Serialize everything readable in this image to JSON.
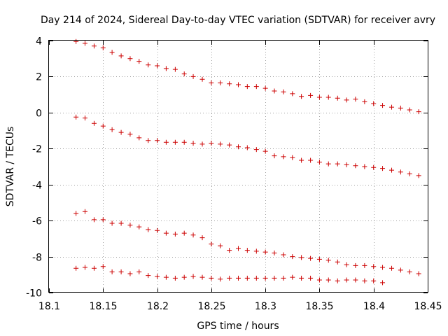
{
  "chart_data": {
    "type": "scatter",
    "title": "Day 214 of 2024, Sidereal Day-to-day VTEC variation (SDTVAR) for receiver avry",
    "xlabel": "GPS time / hours",
    "ylabel": "SDTVAR / TECUs",
    "xlim": [
      18.1,
      18.45
    ],
    "ylim": [
      -10,
      4
    ],
    "grid": true,
    "marker": "+",
    "marker_color": "#cc0000",
    "xticks": [
      18.1,
      18.15,
      18.2,
      18.25,
      18.3,
      18.35,
      18.4,
      18.45
    ],
    "xtick_labels": [
      "18.1",
      "18.15",
      "18.2",
      "18.25",
      "18.3",
      "18.35",
      "18.4",
      "18.45"
    ],
    "yticks": [
      -10,
      -8,
      -6,
      -4,
      -2,
      0,
      2,
      4
    ],
    "ytick_labels": [
      "-10",
      "-8",
      "-6",
      "-4",
      "-2",
      "0",
      "2",
      "4"
    ],
    "series": [
      {
        "name": "series-1",
        "x": [
          18.125,
          18.1333,
          18.1417,
          18.15,
          18.1583,
          18.1667,
          18.175,
          18.1833,
          18.1917,
          18.2,
          18.2083,
          18.2167,
          18.225,
          18.2333,
          18.2417,
          18.25,
          18.2583,
          18.2667,
          18.275,
          18.2833,
          18.2917,
          18.3,
          18.3083,
          18.3167,
          18.325,
          18.3333,
          18.3417,
          18.35,
          18.3583,
          18.3667,
          18.375,
          18.3833,
          18.3917,
          18.4,
          18.4083,
          18.4167,
          18.425,
          18.4333,
          18.4417
        ],
        "y": [
          3.95,
          3.85,
          3.7,
          3.6,
          3.35,
          3.15,
          3.0,
          2.85,
          2.65,
          2.6,
          2.45,
          2.4,
          2.15,
          2.0,
          1.85,
          1.65,
          1.65,
          1.6,
          1.55,
          1.45,
          1.45,
          1.35,
          1.2,
          1.15,
          1.05,
          0.9,
          0.95,
          0.85,
          0.85,
          0.8,
          0.7,
          0.75,
          0.6,
          0.5,
          0.4,
          0.3,
          0.25,
          0.15,
          0.05
        ]
      },
      {
        "name": "series-2",
        "x": [
          18.125,
          18.1333,
          18.1417,
          18.15,
          18.1583,
          18.1667,
          18.175,
          18.1833,
          18.1917,
          18.2,
          18.2083,
          18.2167,
          18.225,
          18.2333,
          18.2417,
          18.25,
          18.2583,
          18.2667,
          18.275,
          18.2833,
          18.2917,
          18.3,
          18.3083,
          18.3167,
          18.325,
          18.3333,
          18.3417,
          18.35,
          18.3583,
          18.3667,
          18.375,
          18.3833,
          18.3917,
          18.4,
          18.4083,
          18.4167,
          18.425,
          18.4333,
          18.4417
        ],
        "y": [
          -0.25,
          -0.3,
          -0.6,
          -0.75,
          -0.95,
          -1.1,
          -1.2,
          -1.4,
          -1.55,
          -1.55,
          -1.65,
          -1.65,
          -1.65,
          -1.7,
          -1.75,
          -1.7,
          -1.75,
          -1.8,
          -1.9,
          -1.95,
          -2.05,
          -2.15,
          -2.4,
          -2.45,
          -2.5,
          -2.65,
          -2.65,
          -2.75,
          -2.85,
          -2.85,
          -2.9,
          -2.95,
          -3.0,
          -3.05,
          -3.1,
          -3.2,
          -3.3,
          -3.4,
          -3.5
        ]
      },
      {
        "name": "series-3",
        "x": [
          18.125,
          18.1333,
          18.1417,
          18.15,
          18.1583,
          18.1667,
          18.175,
          18.1833,
          18.1917,
          18.2,
          18.2083,
          18.2167,
          18.225,
          18.2333,
          18.2417,
          18.25,
          18.2583,
          18.2667,
          18.275,
          18.2833,
          18.2917,
          18.3,
          18.3083,
          18.3167,
          18.325,
          18.3333,
          18.3417,
          18.35,
          18.3583,
          18.3667,
          18.375,
          18.3833,
          18.3917,
          18.4,
          18.4083,
          18.4167,
          18.425,
          18.4333,
          18.4417
        ],
        "y": [
          -5.6,
          -5.5,
          -5.95,
          -5.95,
          -6.15,
          -6.15,
          -6.25,
          -6.35,
          -6.5,
          -6.55,
          -6.7,
          -6.75,
          -6.7,
          -6.8,
          -6.95,
          -7.3,
          -7.4,
          -7.65,
          -7.55,
          -7.65,
          -7.7,
          -7.75,
          -7.8,
          -7.9,
          -8.0,
          -8.05,
          -8.1,
          -8.15,
          -8.2,
          -8.3,
          -8.45,
          -8.5,
          -8.5,
          -8.55,
          -8.6,
          -8.65,
          -8.75,
          -8.85,
          -8.95
        ]
      },
      {
        "name": "series-4",
        "x": [
          18.125,
          18.1333,
          18.1417,
          18.15,
          18.1583,
          18.1667,
          18.175,
          18.1833,
          18.1917,
          18.2,
          18.2083,
          18.2167,
          18.225,
          18.2333,
          18.2417,
          18.25,
          18.2583,
          18.2667,
          18.275,
          18.2833,
          18.2917,
          18.3,
          18.3083,
          18.3167,
          18.325,
          18.3333,
          18.3417,
          18.35,
          18.3583,
          18.3667,
          18.375,
          18.3833,
          18.3917,
          18.4,
          18.4083
        ],
        "y": [
          -8.65,
          -8.6,
          -8.65,
          -8.55,
          -8.85,
          -8.85,
          -8.95,
          -8.85,
          -9.05,
          -9.1,
          -9.15,
          -9.2,
          -9.15,
          -9.1,
          -9.15,
          -9.2,
          -9.25,
          -9.2,
          -9.2,
          -9.2,
          -9.2,
          -9.2,
          -9.2,
          -9.2,
          -9.15,
          -9.2,
          -9.2,
          -9.3,
          -9.3,
          -9.35,
          -9.3,
          -9.3,
          -9.35,
          -9.35,
          -9.45
        ]
      }
    ]
  }
}
